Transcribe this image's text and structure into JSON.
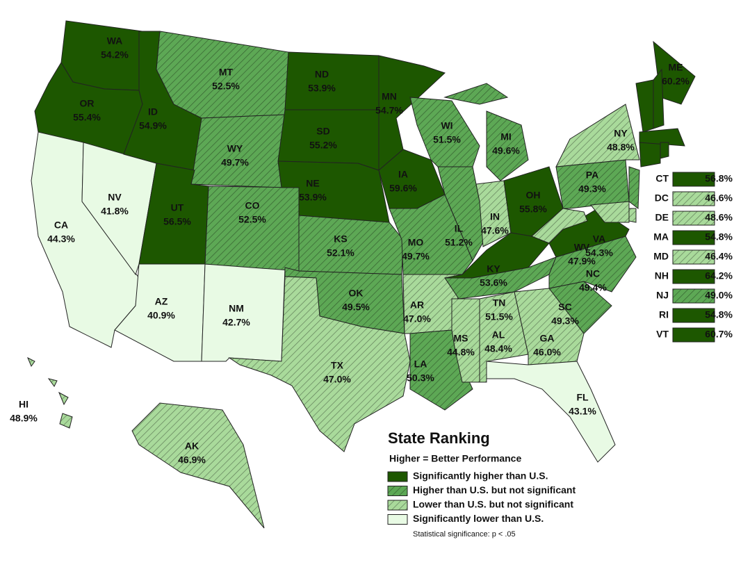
{
  "map": {
    "states": [
      {
        "abbr": "WA",
        "value": "54.2%",
        "level": 0
      },
      {
        "abbr": "OR",
        "value": "55.4%",
        "level": 0
      },
      {
        "abbr": "CA",
        "value": "44.3%",
        "level": 3
      },
      {
        "abbr": "NV",
        "value": "41.8%",
        "level": 3
      },
      {
        "abbr": "ID",
        "value": "54.9%",
        "level": 0
      },
      {
        "abbr": "MT",
        "value": "52.5%",
        "level": 1
      },
      {
        "abbr": "WY",
        "value": "49.7%",
        "level": 1
      },
      {
        "abbr": "UT",
        "value": "56.5%",
        "level": 0
      },
      {
        "abbr": "AZ",
        "value": "40.9%",
        "level": 3
      },
      {
        "abbr": "NM",
        "value": "42.7%",
        "level": 3
      },
      {
        "abbr": "CO",
        "value": "52.5%",
        "level": 1
      },
      {
        "abbr": "ND",
        "value": "53.9%",
        "level": 0
      },
      {
        "abbr": "SD",
        "value": "55.2%",
        "level": 0
      },
      {
        "abbr": "NE",
        "value": "53.9%",
        "level": 0
      },
      {
        "abbr": "KS",
        "value": "52.1%",
        "level": 1
      },
      {
        "abbr": "OK",
        "value": "49.5%",
        "level": 1
      },
      {
        "abbr": "TX",
        "value": "47.0%",
        "level": 2
      },
      {
        "abbr": "MN",
        "value": "54.7%",
        "level": 0
      },
      {
        "abbr": "IA",
        "value": "59.6%",
        "level": 0
      },
      {
        "abbr": "MO",
        "value": "49.7%",
        "level": 1
      },
      {
        "abbr": "AR",
        "value": "47.0%",
        "level": 2
      },
      {
        "abbr": "LA",
        "value": "50.3%",
        "level": 1
      },
      {
        "abbr": "WI",
        "value": "51.5%",
        "level": 1
      },
      {
        "abbr": "IL",
        "value": "51.2%",
        "level": 1
      },
      {
        "abbr": "MI",
        "value": "49.6%",
        "level": 1
      },
      {
        "abbr": "IN",
        "value": "47.6%",
        "level": 2
      },
      {
        "abbr": "OH",
        "value": "55.8%",
        "level": 0
      },
      {
        "abbr": "KY",
        "value": "53.6%",
        "level": 0
      },
      {
        "abbr": "TN",
        "value": "51.5%",
        "level": 1
      },
      {
        "abbr": "MS",
        "value": "44.8%",
        "level": 2
      },
      {
        "abbr": "AL",
        "value": "48.4%",
        "level": 2
      },
      {
        "abbr": "GA",
        "value": "46.0%",
        "level": 2
      },
      {
        "abbr": "FL",
        "value": "43.1%",
        "level": 3
      },
      {
        "abbr": "SC",
        "value": "49.3%",
        "level": 1
      },
      {
        "abbr": "NC",
        "value": "49.4%",
        "level": 1
      },
      {
        "abbr": "VA",
        "value": "54.3%",
        "level": 0
      },
      {
        "abbr": "WV",
        "value": "47.9%",
        "level": 2
      },
      {
        "abbr": "PA",
        "value": "49.3%",
        "level": 1
      },
      {
        "abbr": "NY",
        "value": "48.8%",
        "level": 2
      },
      {
        "abbr": "ME",
        "value": "60.2%",
        "level": 0
      },
      {
        "abbr": "AK",
        "value": "46.9%",
        "level": 2
      },
      {
        "abbr": "HI",
        "value": "48.9%",
        "level": 2
      }
    ],
    "inset_states": [
      {
        "abbr": "CT",
        "value": "56.8%",
        "level": 0
      },
      {
        "abbr": "DC",
        "value": "46.6%",
        "level": 2
      },
      {
        "abbr": "DE",
        "value": "48.6%",
        "level": 2
      },
      {
        "abbr": "MA",
        "value": "54.8%",
        "level": 0
      },
      {
        "abbr": "MD",
        "value": "46.4%",
        "level": 2
      },
      {
        "abbr": "NH",
        "value": "64.2%",
        "level": 0
      },
      {
        "abbr": "NJ",
        "value": "49.0%",
        "level": 1
      },
      {
        "abbr": "RI",
        "value": "54.8%",
        "level": 0
      },
      {
        "abbr": "VT",
        "value": "60.7%",
        "level": 0
      }
    ],
    "legend": {
      "title": "State Ranking",
      "subtitle": "Higher = Better Performance",
      "items": [
        {
          "label": "Significantly higher than U.S.",
          "color": "#1d5700",
          "hatch": false
        },
        {
          "label": "Higher than U.S. but not significant",
          "color": "#5da855",
          "hatch": true
        },
        {
          "label": "Lower than U.S. but not significant",
          "color": "#a9da9b",
          "hatch": true
        },
        {
          "label": "Significantly lower than U.S.",
          "color": "#e8fae4",
          "hatch": false
        }
      ],
      "note": "Statistical significance: p < .05"
    }
  }
}
